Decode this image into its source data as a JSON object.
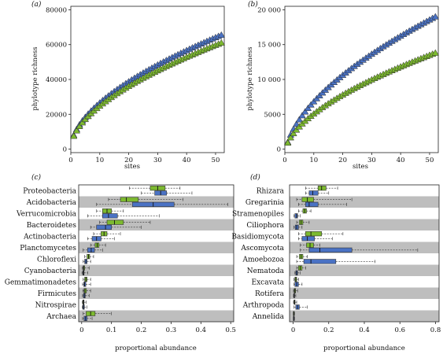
{
  "colors": {
    "series_a": "#7DBA2F",
    "series_b": "#4A72C4",
    "band": "#BEBEBE"
  },
  "chart_data": [
    {
      "id": "a",
      "type": "line",
      "panel_label": "(a)",
      "xlabel": "sites",
      "ylabel": "phylotype richness",
      "xlim": [
        0,
        53
      ],
      "ylim": [
        -2000,
        82000
      ],
      "xticks": [
        0,
        10,
        20,
        30,
        40,
        50
      ],
      "yticks": [
        0,
        20000,
        40000,
        60000,
        80000
      ],
      "ytick_labels": [
        "0",
        "20000",
        "40000",
        "60000",
        "80000"
      ],
      "series": [
        {
          "color": "#4A72C4",
          "y1": 8000,
          "y52": 65500
        },
        {
          "color": "#7DBA2F",
          "y1": 7500,
          "y52": 61000
        }
      ],
      "x": [
        1,
        52
      ]
    },
    {
      "id": "b",
      "type": "line",
      "panel_label": "(b)",
      "xlabel": "sites",
      "ylabel": "phylotype richness",
      "xlim": [
        0,
        53
      ],
      "ylim": [
        -500,
        20500
      ],
      "xticks": [
        0,
        10,
        20,
        30,
        40,
        50
      ],
      "yticks": [
        0,
        5000,
        10000,
        15000,
        20000
      ],
      "ytick_labels": [
        "0",
        "5000",
        "10 000",
        "15 000",
        "20 000"
      ],
      "series": [
        {
          "color": "#4A72C4",
          "y1": 1000,
          "y52": 19000
        },
        {
          "color": "#7DBA2F",
          "y1": 900,
          "y52": 13800
        }
      ],
      "x": [
        1,
        52
      ]
    },
    {
      "id": "c",
      "type": "box",
      "panel_label": "(c)",
      "xlabel": "proportional abundance",
      "xlim": [
        -0.01,
        0.51
      ],
      "xticks": [
        0,
        0.1,
        0.2,
        0.3,
        0.4,
        0.5
      ],
      "xtick_labels": [
        "0",
        "0.1",
        "0.2",
        "0.3",
        "0.4",
        "0.5"
      ],
      "categories": [
        "Proteobacteria",
        "Acidobacteria",
        "Verrucomicrobia",
        "Bacteroidetes",
        "Actinobacteria",
        "Planctomycetes",
        "Chloroflexi",
        "Cyanobacteria",
        "Gemmatimonadetes",
        "Firmicutes",
        "Nitrospirae",
        "Archaea"
      ],
      "series": [
        {
          "color": "#7DBA2F",
          "boxes": [
            [
              0.16,
              0.23,
              0.255,
              0.28,
              0.33
            ],
            [
              0.09,
              0.13,
              0.15,
              0.19,
              0.34
            ],
            [
              0.05,
              0.07,
              0.085,
              0.1,
              0.14
            ],
            [
              0.06,
              0.085,
              0.11,
              0.14,
              0.23
            ],
            [
              0.04,
              0.065,
              0.075,
              0.085,
              0.13
            ],
            [
              0.03,
              0.045,
              0.052,
              0.058,
              0.08
            ],
            [
              0.01,
              0.018,
              0.023,
              0.027,
              0.04
            ],
            [
              0.002,
              0.005,
              0.007,
              0.01,
              0.025
            ],
            [
              0.005,
              0.01,
              0.014,
              0.018,
              0.03
            ],
            [
              0.004,
              0.008,
              0.011,
              0.016,
              0.03
            ],
            [
              0.002,
              0.004,
              0.006,
              0.008,
              0.015
            ],
            [
              0.005,
              0.015,
              0.03,
              0.045,
              0.1
            ]
          ]
        },
        {
          "color": "#4A72C4",
          "boxes": [
            [
              0.2,
              0.245,
              0.265,
              0.285,
              0.37
            ],
            [
              0.05,
              0.17,
              0.24,
              0.31,
              0.49
            ],
            [
              0.02,
              0.07,
              0.09,
              0.12,
              0.26
            ],
            [
              0.03,
              0.05,
              0.08,
              0.1,
              0.2
            ],
            [
              0.02,
              0.035,
              0.05,
              0.065,
              0.11
            ],
            [
              0.005,
              0.02,
              0.032,
              0.043,
              0.07
            ],
            [
              0.005,
              0.01,
              0.014,
              0.018,
              0.03
            ],
            [
              0.001,
              0.004,
              0.006,
              0.008,
              0.02
            ],
            [
              0.003,
              0.007,
              0.01,
              0.014,
              0.03
            ],
            [
              0.003,
              0.006,
              0.009,
              0.012,
              0.025
            ],
            [
              0.002,
              0.004,
              0.006,
              0.009,
              0.018
            ],
            [
              0.003,
              0.008,
              0.013,
              0.018,
              0.035
            ]
          ]
        }
      ]
    },
    {
      "id": "d",
      "type": "box",
      "panel_label": "(d)",
      "xlabel": "proportional abundance",
      "xlim": [
        -0.02,
        0.82
      ],
      "xticks": [
        0,
        0.2,
        0.4,
        0.6,
        0.8
      ],
      "xtick_labels": [
        "0",
        "0.2",
        "0.4",
        "0.6",
        "0.8"
      ],
      "categories": [
        "Rhizara",
        "Gregarinia",
        "Stramenopiles",
        "Ciliophora",
        "Basidiomycota",
        "Ascomycota",
        "Amoebozoa",
        "Nematoda",
        "Excavata",
        "Rotifera",
        "Arthropoda",
        "Annelida"
      ],
      "series": [
        {
          "color": "#7DBA2F",
          "boxes": [
            [
              0.07,
              0.14,
              0.16,
              0.185,
              0.25
            ],
            [
              0.02,
              0.05,
              0.08,
              0.115,
              0.33
            ],
            [
              0.03,
              0.055,
              0.065,
              0.075,
              0.1
            ],
            [
              0.02,
              0.035,
              0.045,
              0.055,
              0.09
            ],
            [
              0.03,
              0.07,
              0.1,
              0.16,
              0.28
            ],
            [
              0.04,
              0.075,
              0.095,
              0.115,
              0.15
            ],
            [
              0.02,
              0.035,
              0.045,
              0.055,
              0.08
            ],
            [
              0.02,
              0.03,
              0.04,
              0.05,
              0.07
            ],
            [
              0.005,
              0.01,
              0.015,
              0.02,
              0.03
            ],
            [
              0.002,
              0.006,
              0.01,
              0.014,
              0.025
            ],
            [
              0.002,
              0.005,
              0.008,
              0.011,
              0.02
            ],
            [
              0.001,
              0.002,
              0.003,
              0.004,
              0.008
            ]
          ]
        },
        {
          "color": "#4A72C4",
          "boxes": [
            [
              0.07,
              0.09,
              0.11,
              0.14,
              0.2
            ],
            [
              0.03,
              0.07,
              0.09,
              0.14,
              0.3
            ],
            [
              0.005,
              0.01,
              0.02,
              0.025,
              0.04
            ],
            [
              0.005,
              0.012,
              0.02,
              0.03,
              0.05
            ],
            [
              0.03,
              0.05,
              0.08,
              0.12,
              0.22
            ],
            [
              0.04,
              0.09,
              0.15,
              0.33,
              0.7
            ],
            [
              0.02,
              0.06,
              0.1,
              0.24,
              0.46
            ],
            [
              0.01,
              0.015,
              0.02,
              0.025,
              0.04
            ],
            [
              0.005,
              0.01,
              0.02,
              0.03,
              0.05
            ],
            [
              0.002,
              0.004,
              0.006,
              0.008,
              0.015
            ],
            [
              0.005,
              0.015,
              0.025,
              0.035,
              0.08
            ],
            [
              0.001,
              0.002,
              0.003,
              0.004,
              0.008
            ]
          ]
        }
      ]
    }
  ]
}
